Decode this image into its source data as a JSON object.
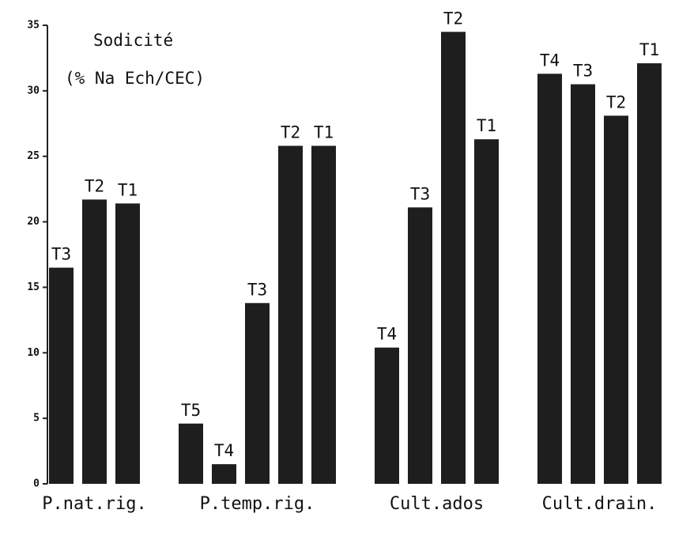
{
  "chart_data": {
    "type": "bar",
    "title": "Sodicité",
    "subtitle": "(% Na Ech/CEC)",
    "color": "#1e1e1e",
    "ylim": [
      0,
      35
    ],
    "yticks": [
      0,
      5,
      10,
      15,
      20,
      25,
      30,
      35
    ],
    "groups": [
      {
        "name": "P.nat.rig.",
        "bars": [
          {
            "label": "T3",
            "value": 16.5
          },
          {
            "label": "T2",
            "value": 21.7
          },
          {
            "label": "T1",
            "value": 21.4
          }
        ]
      },
      {
        "name": "P.temp.rig.",
        "bars": [
          {
            "label": "T5",
            "value": 4.6
          },
          {
            "label": "T4",
            "value": 1.5
          },
          {
            "label": "T3",
            "value": 13.8
          },
          {
            "label": "T2",
            "value": 25.8
          },
          {
            "label": "T1",
            "value": 25.8
          }
        ]
      },
      {
        "name": "Cult.ados",
        "bars": [
          {
            "label": "T4",
            "value": 10.4
          },
          {
            "label": "T3",
            "value": 21.1
          },
          {
            "label": "T2",
            "value": 34.5
          },
          {
            "label": "T1",
            "value": 26.3
          }
        ]
      },
      {
        "name": "Cult.drain.",
        "bars": [
          {
            "label": "T4",
            "value": 31.3
          },
          {
            "label": "T3",
            "value": 30.5
          },
          {
            "label": "T2",
            "value": 28.1
          },
          {
            "label": "T1",
            "value": 32.1
          }
        ]
      }
    ]
  }
}
